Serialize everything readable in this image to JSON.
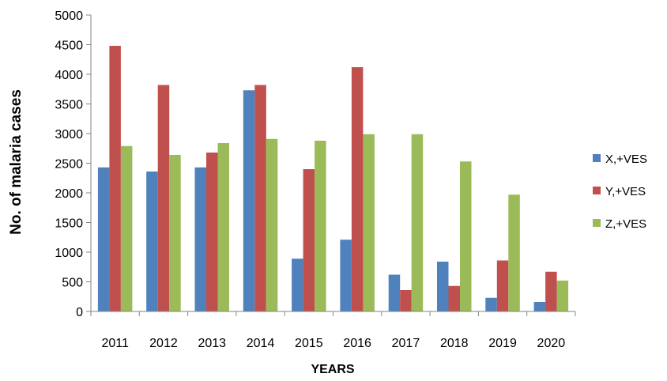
{
  "chart_data": {
    "type": "bar",
    "title": "",
    "xlabel": "YEARS",
    "ylabel": "No. of malaria cases",
    "ylim": [
      0,
      5000
    ],
    "ytick_step": 500,
    "grid": false,
    "legend_position": "right",
    "categories": [
      "2011",
      "2012",
      "2013",
      "2014",
      "2015",
      "2016",
      "2017",
      "2018",
      "2019",
      "2020"
    ],
    "series": [
      {
        "name": "X,+VES",
        "color": "#4f81bd",
        "values": [
          2430,
          2360,
          2430,
          3730,
          890,
          1210,
          620,
          840,
          230,
          160
        ]
      },
      {
        "name": "Y,+VES",
        "color": "#c0504d",
        "values": [
          4480,
          3820,
          2680,
          3820,
          2400,
          4120,
          360,
          430,
          860,
          670
        ]
      },
      {
        "name": "Z,+VES",
        "color": "#9bbb59",
        "values": [
          2790,
          2640,
          2840,
          2910,
          2880,
          2990,
          2990,
          2530,
          1970,
          520
        ]
      }
    ]
  }
}
